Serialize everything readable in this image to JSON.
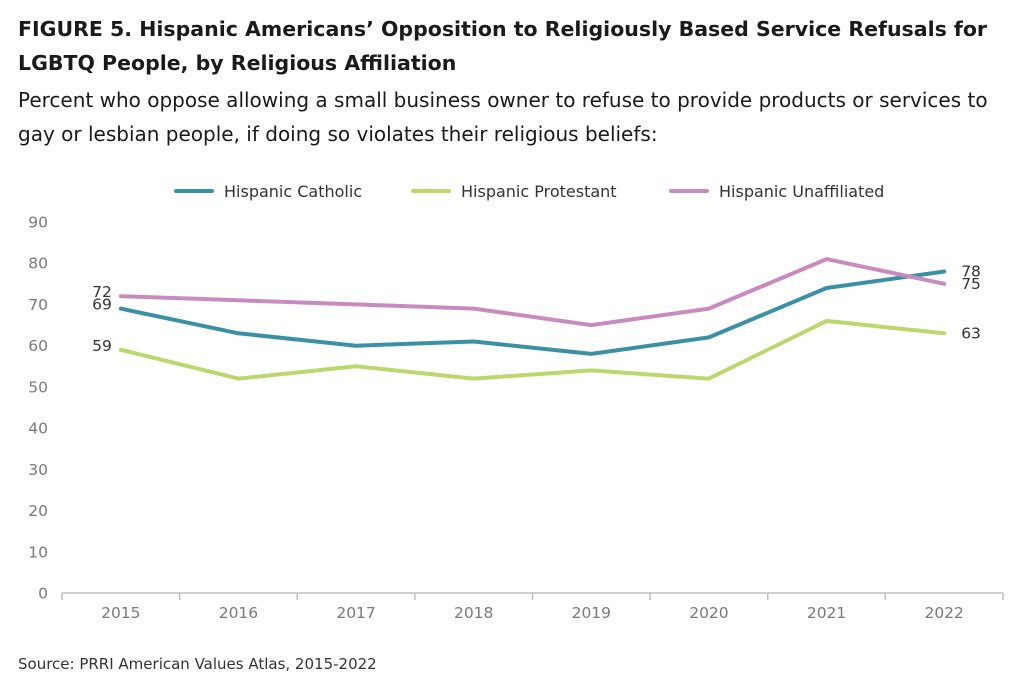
{
  "figure": {
    "title_line1": "FIGURE 5.  Hispanic Americans’ Opposition to Religiously Based Service Refusals for",
    "title_line2": "LGBTQ People, by Religious Affiliation",
    "subtitle_line1": "Percent who oppose allowing a small business owner to refuse to provide products or services to",
    "subtitle_line2": "gay or lesbian people, if doing so violates their religious beliefs:",
    "source": "Source: PRRI American Values Atlas, 2015-2022"
  },
  "chart_data": {
    "type": "line",
    "title": "",
    "xlabel": "",
    "ylabel": "",
    "x": [
      "2015",
      "2016",
      "2017",
      "2018",
      "2019",
      "2020",
      "2021",
      "2022"
    ],
    "ylim": [
      0,
      90
    ],
    "yticks": [
      "0",
      "10",
      "20",
      "30",
      "40",
      "50",
      "60",
      "70",
      "80",
      "90"
    ],
    "grid": false,
    "legend_position": "top",
    "series": [
      {
        "name": "Hispanic Catholic",
        "color": "#3a91a6",
        "values": [
          69,
          63,
          60,
          61,
          58,
          62,
          74,
          78
        ],
        "labels": {
          "first": "69",
          "last": "78"
        }
      },
      {
        "name": "Hispanic Protestant",
        "color": "#bcd86c",
        "values": [
          59,
          52,
          55,
          52,
          54,
          52,
          66,
          63
        ],
        "labels": {
          "first": "59",
          "last": "63"
        }
      },
      {
        "name": "Hispanic Unaffiliated",
        "color": "#c98bbf",
        "values": [
          72,
          71,
          70,
          69,
          65,
          69,
          81,
          75
        ],
        "labels": {
          "first": "72",
          "last": "75"
        }
      }
    ]
  }
}
